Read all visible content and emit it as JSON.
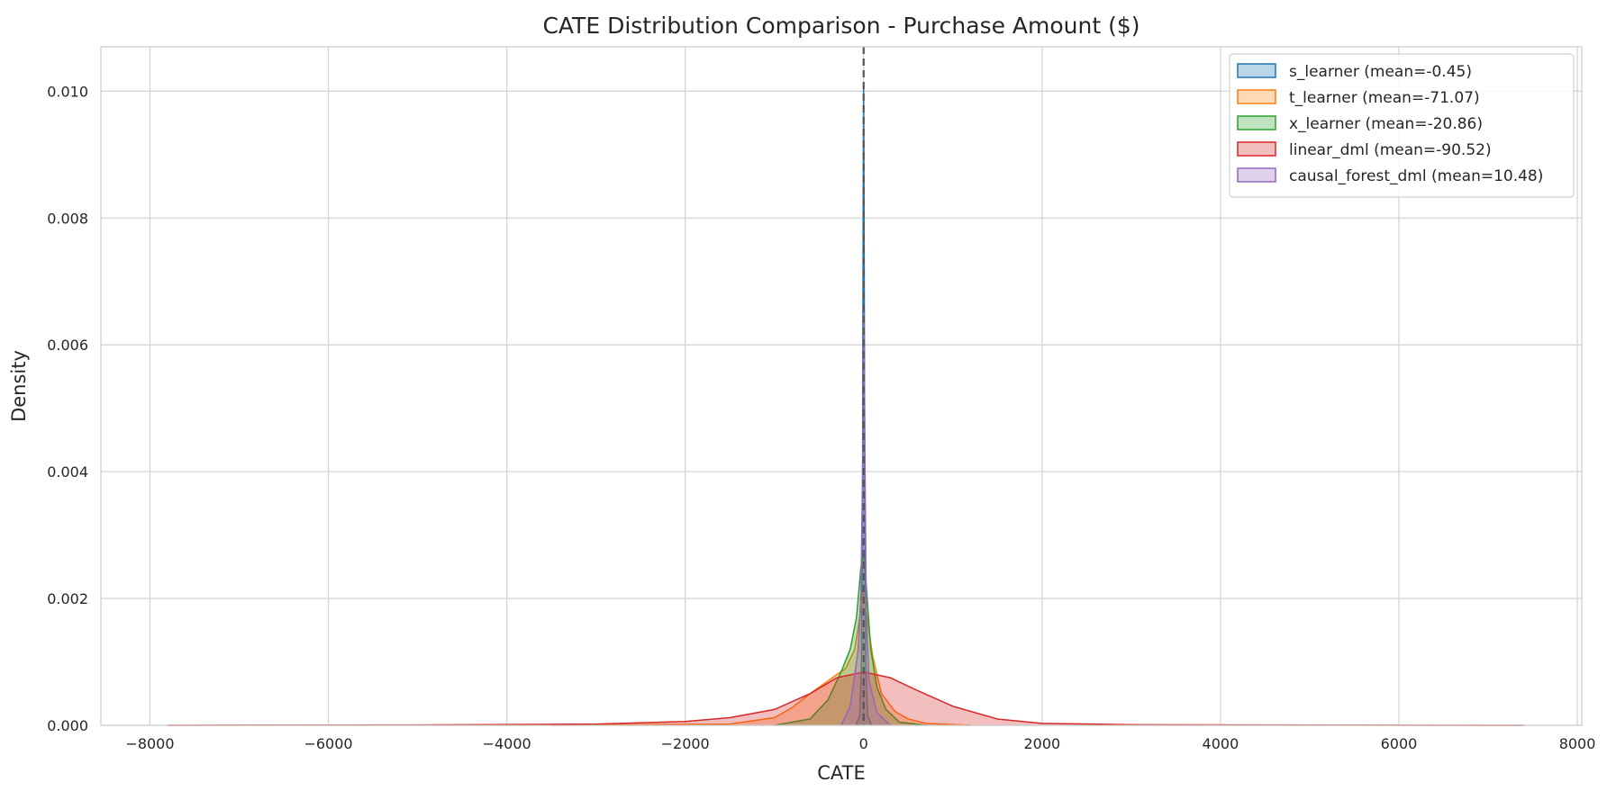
{
  "chart_data": {
    "type": "area",
    "title": "CATE Distribution Comparison - Purchase Amount ($)",
    "xlabel": "CATE",
    "ylabel": "Density",
    "xlim": [
      -8550,
      8050
    ],
    "ylim": [
      0,
      0.0107
    ],
    "x_ticks": [
      -8000,
      -6000,
      -4000,
      -2000,
      0,
      2000,
      4000,
      6000,
      8000
    ],
    "x_tick_labels": [
      "−8000",
      "−6000",
      "−4000",
      "−2000",
      "0",
      "2000",
      "4000",
      "6000",
      "8000"
    ],
    "y_ticks": [
      0,
      0.002,
      0.004,
      0.006,
      0.008,
      0.01
    ],
    "y_tick_labels": [
      "0.000",
      "0.002",
      "0.004",
      "0.006",
      "0.008",
      "0.010"
    ],
    "grid": true,
    "legend_position": "top-right",
    "reference_line": {
      "x": 0,
      "style": "dashed",
      "color": "#555555"
    },
    "series": [
      {
        "name": "s_learner (mean=-0.45)",
        "color": "#1f77b4",
        "x": [
          -90,
          -45,
          -25,
          -12,
          -5,
          0,
          5,
          12,
          25,
          45,
          90
        ],
        "y": [
          0,
          0.00015,
          0.0009,
          0.0038,
          0.0082,
          0.0101,
          0.0082,
          0.0038,
          0.0009,
          0.00015,
          0
        ]
      },
      {
        "name": "t_learner (mean=-71.07)",
        "color": "#ff7f0e",
        "x": [
          -3500,
          -1500,
          -1000,
          -800,
          -600,
          -400,
          -200,
          -100,
          0,
          100,
          200,
          350,
          500,
          700,
          1200
        ],
        "y": [
          0,
          2e-05,
          0.00012,
          0.00028,
          0.0005,
          0.0007,
          0.0009,
          0.0012,
          0.0021,
          0.0011,
          0.0005,
          0.00022,
          0.0001,
          3e-05,
          0
        ]
      },
      {
        "name": "x_learner (mean=-20.86)",
        "color": "#2ca02c",
        "x": [
          -1000,
          -600,
          -400,
          -250,
          -150,
          -80,
          -30,
          0,
          30,
          80,
          150,
          250,
          400,
          700
        ],
        "y": [
          0,
          0.0001,
          0.0004,
          0.00085,
          0.0012,
          0.0017,
          0.0025,
          0.0027,
          0.0022,
          0.0012,
          0.0006,
          0.00025,
          5e-05,
          0
        ]
      },
      {
        "name": "linear_dml (mean=-90.52)",
        "color": "#d62728",
        "x": [
          -7800,
          -5000,
          -3000,
          -2000,
          -1500,
          -1000,
          -600,
          -300,
          0,
          300,
          600,
          1000,
          1500,
          2000,
          3000,
          5000,
          7400
        ],
        "y": [
          0,
          5e-06,
          2e-05,
          6e-05,
          0.00012,
          0.00025,
          0.0005,
          0.00075,
          0.00084,
          0.00075,
          0.00055,
          0.0003,
          0.0001,
          3e-05,
          1e-05,
          3e-06,
          0
        ]
      },
      {
        "name": "causal_forest_dml (mean=10.48)",
        "color": "#9467bd",
        "x": [
          -250,
          -150,
          -60,
          -30,
          -10,
          5,
          15,
          30,
          60,
          150,
          300
        ],
        "y": [
          0,
          0.0003,
          0.0012,
          0.0021,
          0.0042,
          0.0065,
          0.0042,
          0.0018,
          0.0007,
          0.0002,
          0
        ]
      }
    ]
  }
}
